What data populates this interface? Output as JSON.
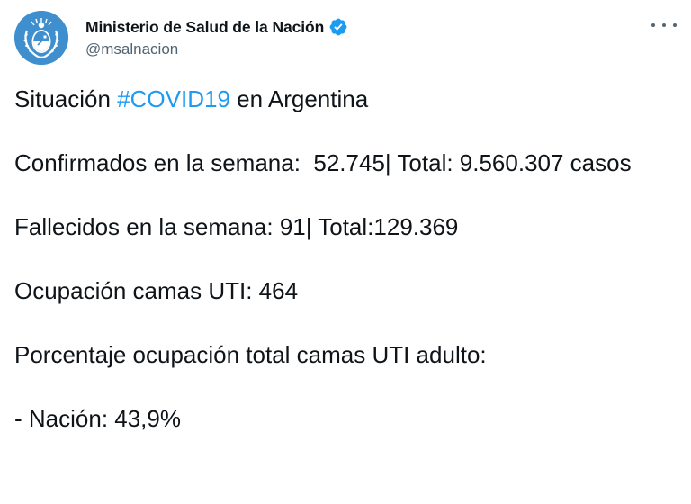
{
  "account": {
    "display_name": "Ministerio de Salud de la Nación",
    "handle": "@msalnacion",
    "avatar": "argentina-coat-of-arms",
    "verified": true
  },
  "tweet": {
    "line1_prefix": "Situación ",
    "hashtag": "#COVID19",
    "line1_suffix": " en Argentina",
    "confirmados": "Confirmados en la semana:  52.745| Total: 9.560.307 casos",
    "fallecidos": "Fallecidos en la semana: 91| Total:129.369",
    "ocupacion": "Ocupación camas UTI: 464",
    "porcentaje_label": "Porcentaje ocupación total camas UTI adulto:",
    "nacion": "- Nación: 43,9%"
  },
  "icons": {
    "verified": "verified-badge-icon",
    "more": "more-options-icon"
  },
  "colors": {
    "link": "#1d9bf0",
    "text": "#0f1419",
    "secondary": "#536471",
    "avatar_bg": "#3f8fcf"
  }
}
